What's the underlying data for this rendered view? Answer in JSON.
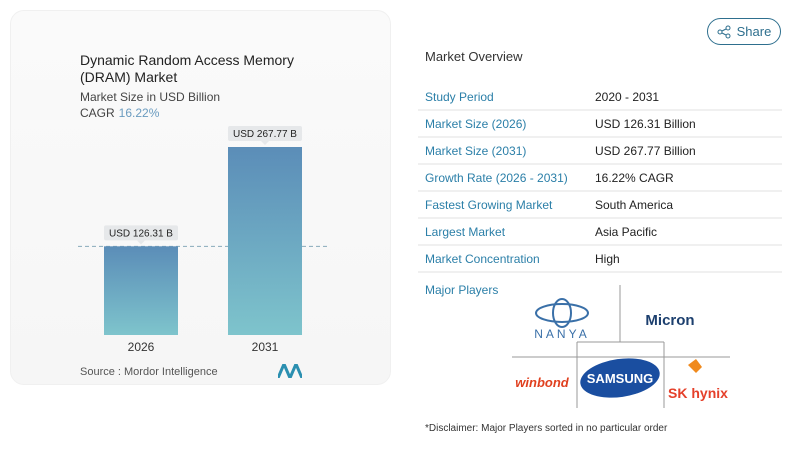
{
  "header": {
    "share_label": "Share",
    "share_icon": "share-icon"
  },
  "chart_data": {
    "type": "bar",
    "title": "Dynamic Random Access Memory (DRAM) Market",
    "subtitle": "Market Size in USD Billion",
    "cagr_label": "CAGR",
    "cagr_value": "16.22%",
    "categories": [
      "2026",
      "2031"
    ],
    "values": [
      126.31,
      267.77
    ],
    "data_labels": [
      "USD 126.31 B",
      "USD 267.77 B"
    ],
    "colors": {
      "bar_top": "#5b8db8",
      "bar_bottom": "#7ec4cc",
      "cagr": "#6a9bbf"
    },
    "grid": false
  },
  "source": "Source :  Mordor Intelligence",
  "overview": {
    "title": "Market Overview",
    "rows": [
      {
        "k": "Study Period",
        "v": "2020 - 2031"
      },
      {
        "k": "Market Size (2026)",
        "v": "USD 126.31 Billion"
      },
      {
        "k": "Market Size (2031)",
        "v": "USD 267.77 Billion"
      },
      {
        "k": "Growth Rate (2026 - 2031)",
        "v": "16.22% CAGR"
      },
      {
        "k": "Fastest Growing Market",
        "v": "South America"
      },
      {
        "k": "Largest Market",
        "v": "Asia Pacific"
      },
      {
        "k": "Market Concentration",
        "v": "High"
      }
    ],
    "players_title": "Major Players",
    "players": [
      "NANYA",
      "Micron",
      "winbond",
      "SAMSUNG",
      "SK hynix"
    ],
    "disclaimer": "*Disclaimer: Major Players sorted in no particular order"
  }
}
